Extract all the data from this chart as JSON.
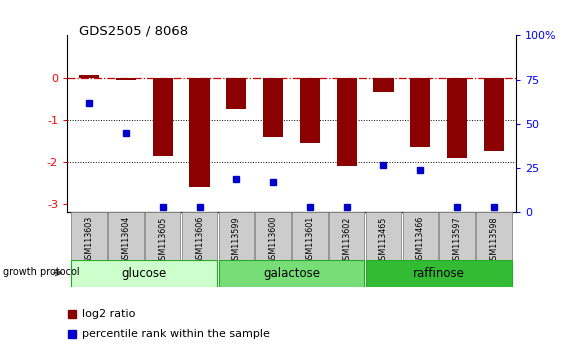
{
  "title": "GDS2505 / 8068",
  "samples": [
    "GSM113603",
    "GSM113604",
    "GSM113605",
    "GSM113606",
    "GSM113599",
    "GSM113600",
    "GSM113601",
    "GSM113602",
    "GSM113465",
    "GSM113466",
    "GSM113597",
    "GSM113598"
  ],
  "log2_ratio": [
    0.07,
    -0.07,
    -1.85,
    -2.6,
    -0.75,
    -1.4,
    -1.55,
    -2.1,
    -0.35,
    -1.65,
    -1.9,
    -1.75
  ],
  "percentile_rank": [
    62,
    45,
    3,
    3,
    19,
    17,
    3,
    3,
    27,
    24,
    3,
    3
  ],
  "groups": [
    {
      "label": "glucose",
      "start": 0,
      "end": 4,
      "color": "#ccffcc"
    },
    {
      "label": "galactose",
      "start": 4,
      "end": 8,
      "color": "#77dd77"
    },
    {
      "label": "raffinose",
      "start": 8,
      "end": 12,
      "color": "#33bb33"
    }
  ],
  "bar_color": "#8b0000",
  "dot_color": "#0000cc",
  "dashed_line_color": "#cc0000",
  "ylim_left": [
    -3.2,
    1.0
  ],
  "ylim_right": [
    0,
    100
  ],
  "yticks_left": [
    -3,
    -2,
    -1,
    0
  ],
  "yticks_right": [
    0,
    25,
    50,
    75,
    100
  ],
  "legend_items": [
    "log2 ratio",
    "percentile rank within the sample"
  ],
  "growth_protocol_label": "growth protocol",
  "bar_width": 0.55,
  "dot_size": 4.5
}
